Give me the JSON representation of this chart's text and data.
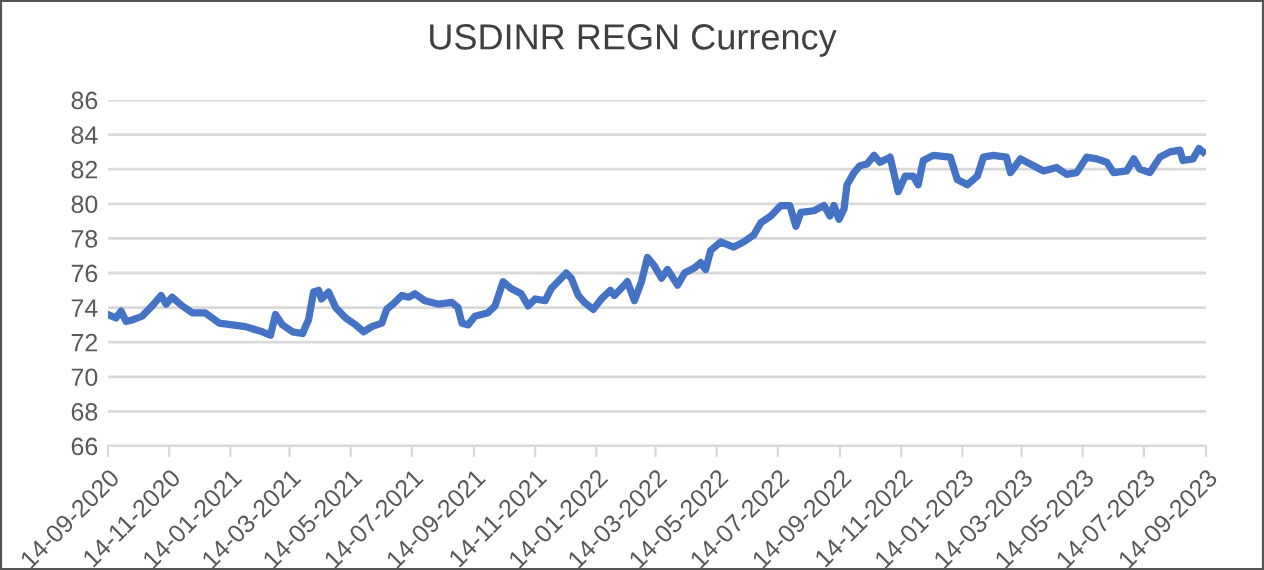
{
  "chart_data": {
    "type": "line",
    "title": "USDINR REGN Currency",
    "x": [
      "2020-09-14",
      "2020-09-22",
      "2020-09-27",
      "2020-10-02",
      "2020-10-09",
      "2020-10-18",
      "2020-10-28",
      "2020-11-06",
      "2020-11-11",
      "2020-11-17",
      "2020-11-27",
      "2020-12-07",
      "2020-12-20",
      "2021-01-03",
      "2021-01-16",
      "2021-01-29",
      "2021-02-15",
      "2021-02-23",
      "2021-02-28",
      "2021-03-07",
      "2021-03-17",
      "2021-03-27",
      "2021-04-02",
      "2021-04-07",
      "2021-04-12",
      "2021-04-15",
      "2021-04-22",
      "2021-04-29",
      "2021-05-09",
      "2021-05-19",
      "2021-05-27",
      "2021-06-04",
      "2021-06-14",
      "2021-06-19",
      "2021-06-27",
      "2021-07-04",
      "2021-07-11",
      "2021-07-17",
      "2021-07-27",
      "2021-08-10",
      "2021-08-23",
      "2021-08-29",
      "2021-09-02",
      "2021-09-08",
      "2021-09-15",
      "2021-09-28",
      "2021-10-05",
      "2021-10-13",
      "2021-10-21",
      "2021-10-31",
      "2021-11-07",
      "2021-11-14",
      "2021-11-24",
      "2021-11-30",
      "2021-12-10",
      "2021-12-15",
      "2021-12-20",
      "2021-12-27",
      "2022-01-02",
      "2022-01-11",
      "2022-01-19",
      "2022-01-28",
      "2022-02-01",
      "2022-02-11",
      "2022-02-14",
      "2022-02-21",
      "2022-02-28",
      "2022-03-06",
      "2022-03-13",
      "2022-03-20",
      "2022-03-26",
      "2022-04-05",
      "2022-04-12",
      "2022-04-22",
      "2022-04-28",
      "2022-05-03",
      "2022-05-08",
      "2022-05-18",
      "2022-05-31",
      "2022-06-10",
      "2022-06-20",
      "2022-06-27",
      "2022-07-07",
      "2022-07-17",
      "2022-07-26",
      "2022-08-01",
      "2022-08-06",
      "2022-08-19",
      "2022-08-29",
      "2022-09-04",
      "2022-09-08",
      "2022-09-13",
      "2022-09-18",
      "2022-09-21",
      "2022-09-28",
      "2022-10-04",
      "2022-10-11",
      "2022-10-18",
      "2022-10-24",
      "2022-11-03",
      "2022-11-11",
      "2022-11-18",
      "2022-11-26",
      "2022-12-01",
      "2022-12-06",
      "2022-12-16",
      "2023-01-02",
      "2023-01-09",
      "2023-01-19",
      "2023-01-29",
      "2023-02-04",
      "2023-02-14",
      "2023-02-27",
      "2023-03-03",
      "2023-03-13",
      "2023-03-26",
      "2023-04-05",
      "2023-04-18",
      "2023-04-28",
      "2023-05-08",
      "2023-05-18",
      "2023-05-28",
      "2023-06-07",
      "2023-06-14",
      "2023-06-27",
      "2023-07-04",
      "2023-07-10",
      "2023-07-20",
      "2023-07-30",
      "2023-08-09",
      "2023-08-19",
      "2023-08-22",
      "2023-09-01",
      "2023-09-07",
      "2023-09-11"
    ],
    "series": [
      {
        "color": "#4472c4",
        "values": [
          73.6,
          73.4,
          73.8,
          73.2,
          73.3,
          73.5,
          74.1,
          74.7,
          74.2,
          74.6,
          74.1,
          73.7,
          73.7,
          73.1,
          73.0,
          72.9,
          72.6,
          72.4,
          73.6,
          73.0,
          72.6,
          72.5,
          73.3,
          74.9,
          75.0,
          74.5,
          74.9,
          74.0,
          73.4,
          73.0,
          72.6,
          72.9,
          73.1,
          73.9,
          74.3,
          74.7,
          74.6,
          74.8,
          74.4,
          74.2,
          74.3,
          74.0,
          73.1,
          73.0,
          73.5,
          73.7,
          74.1,
          75.5,
          75.1,
          74.8,
          74.1,
          74.5,
          74.4,
          75.1,
          75.7,
          76.0,
          75.7,
          74.7,
          74.3,
          73.9,
          74.5,
          75.0,
          74.7,
          75.3,
          75.5,
          74.4,
          75.5,
          76.9,
          76.4,
          75.7,
          76.2,
          75.3,
          76.0,
          76.3,
          76.6,
          76.2,
          77.3,
          77.8,
          77.5,
          77.8,
          78.2,
          78.9,
          79.3,
          79.9,
          79.9,
          78.7,
          79.5,
          79.6,
          79.9,
          79.3,
          79.9,
          79.1,
          79.7,
          81.1,
          81.8,
          82.2,
          82.3,
          82.8,
          82.4,
          82.7,
          80.7,
          81.6,
          81.6,
          81.1,
          82.5,
          82.8,
          82.7,
          81.4,
          81.1,
          81.6,
          82.7,
          82.8,
          82.7,
          81.8,
          82.6,
          82.2,
          81.9,
          82.1,
          81.7,
          81.8,
          82.7,
          82.6,
          82.4,
          81.8,
          81.9,
          82.6,
          82.0,
          81.8,
          82.7,
          83.0,
          83.1,
          82.5,
          82.6,
          83.2,
          83.0
        ]
      }
    ],
    "xlim": [
      "2020-09-14",
      "2023-09-14"
    ],
    "xticks": [
      {
        "value": "2020-09-14",
        "label": "14-09-2020"
      },
      {
        "value": "2020-11-14",
        "label": "14-11-2020"
      },
      {
        "value": "2021-01-14",
        "label": "14-01-2021"
      },
      {
        "value": "2021-03-14",
        "label": "14-03-2021"
      },
      {
        "value": "2021-05-14",
        "label": "14-05-2021"
      },
      {
        "value": "2021-07-14",
        "label": "14-07-2021"
      },
      {
        "value": "2021-09-14",
        "label": "14-09-2021"
      },
      {
        "value": "2021-11-14",
        "label": "14-11-2021"
      },
      {
        "value": "2022-01-14",
        "label": "14-01-2022"
      },
      {
        "value": "2022-03-14",
        "label": "14-03-2022"
      },
      {
        "value": "2022-05-14",
        "label": "14-05-2022"
      },
      {
        "value": "2022-07-14",
        "label": "14-07-2022"
      },
      {
        "value": "2022-09-14",
        "label": "14-09-2022"
      },
      {
        "value": "2022-11-14",
        "label": "14-11-2022"
      },
      {
        "value": "2023-01-14",
        "label": "14-01-2023"
      },
      {
        "value": "2023-03-14",
        "label": "14-03-2023"
      },
      {
        "value": "2023-05-14",
        "label": "14-05-2023"
      },
      {
        "value": "2023-07-14",
        "label": "14-07-2023"
      },
      {
        "value": "2023-09-14",
        "label": "14-09-2023"
      }
    ],
    "ylim": [
      66,
      86
    ],
    "yticks": [
      66,
      68,
      70,
      72,
      74,
      76,
      78,
      80,
      82,
      84,
      86
    ],
    "grid": "y",
    "line_style": "solid"
  }
}
